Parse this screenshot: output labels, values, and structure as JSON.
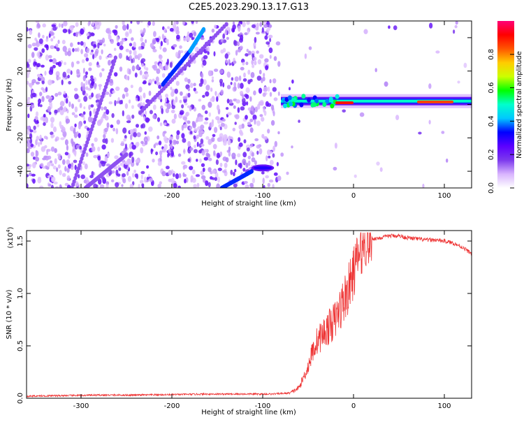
{
  "title": "C2E5.2023.290.13.17.G13",
  "chart_data": [
    {
      "type": "heatmap",
      "xlabel": "Height of straight line (km)",
      "ylabel": "Frequency (Hz)",
      "xlim": [
        -360,
        130
      ],
      "ylim": [
        -50,
        50
      ],
      "xticks": [
        -300,
        -200,
        -100,
        0,
        100
      ],
      "yticks": [
        -40,
        -20,
        0,
        20,
        40
      ],
      "colorbar": {
        "label": "Normalized spectral amplitude",
        "range": [
          0.0,
          1.0
        ],
        "ticks": [
          0.0,
          0.2,
          0.4,
          0.6,
          0.8
        ],
        "colors": [
          "#ffffff",
          "#d8b4fe",
          "#7c3aed",
          "#5b00ff",
          "#0000ff",
          "#00c8ff",
          "#00ffcc",
          "#00ff00",
          "#ccff00",
          "#ffcc00",
          "#ff5500",
          "#ff0000",
          "#ff0077"
        ]
      },
      "features": [
        {
          "kind": "streak",
          "x": [
            -310,
            -262
          ],
          "y": [
            -50,
            28
          ],
          "level": 0.15
        },
        {
          "kind": "streak",
          "x": [
            -235,
            -140
          ],
          "y": [
            -5,
            48
          ],
          "level": 0.15
        },
        {
          "kind": "streak",
          "x": [
            -210,
            -180
          ],
          "y": [
            12,
            32
          ],
          "level": 0.35
        },
        {
          "kind": "streak",
          "x": [
            -180,
            -165
          ],
          "y": [
            32,
            45
          ],
          "level": 0.4
        },
        {
          "kind": "streak",
          "x": [
            -295,
            -250
          ],
          "y": [
            -50,
            -30
          ],
          "level": 0.15
        },
        {
          "kind": "streak",
          "x": [
            -145,
            -112
          ],
          "y": [
            -50,
            -40
          ],
          "level": 0.35
        },
        {
          "kind": "blob",
          "x": -100,
          "y": -38,
          "w": 25,
          "h": 4,
          "level": 0.3
        },
        {
          "kind": "band",
          "x": [
            -80,
            130
          ],
          "y": 2,
          "level": 0.5
        },
        {
          "kind": "band",
          "x": [
            -20,
            0
          ],
          "y": 1,
          "level": 0.9
        },
        {
          "kind": "band",
          "x": [
            70,
            110
          ],
          "y": 1.5,
          "level": 0.85
        }
      ]
    },
    {
      "type": "line",
      "xlabel": "Height of straight line (km)",
      "ylabel": "SNR (10 * v/v)",
      "yscale_label": "(x10",
      "yscale_exp": "4",
      "yscale_close": ")",
      "xlim": [
        -360,
        130
      ],
      "ylim": [
        0,
        1.6
      ],
      "xticks": [
        -300,
        -200,
        -100,
        0,
        100
      ],
      "yticks": [
        0.0,
        0.5,
        1.0,
        1.5
      ],
      "color": "#ee3333",
      "x": [
        -360,
        -320,
        -280,
        -240,
        -200,
        -160,
        -120,
        -90,
        -70,
        -60,
        -55,
        -50,
        -45,
        -40,
        -35,
        -30,
        -25,
        -20,
        -15,
        -10,
        -5,
        0,
        5,
        10,
        15,
        20,
        30,
        40,
        50,
        60,
        70,
        80,
        90,
        100,
        110,
        120,
        130
      ],
      "y": [
        0.02,
        0.025,
        0.03,
        0.03,
        0.035,
        0.04,
        0.04,
        0.04,
        0.05,
        0.1,
        0.2,
        0.3,
        0.45,
        0.55,
        0.6,
        0.65,
        0.7,
        0.75,
        0.85,
        0.95,
        1.05,
        1.2,
        1.35,
        1.45,
        1.5,
        1.52,
        1.53,
        1.55,
        1.55,
        1.53,
        1.52,
        1.51,
        1.51,
        1.5,
        1.48,
        1.44,
        1.38
      ]
    }
  ]
}
